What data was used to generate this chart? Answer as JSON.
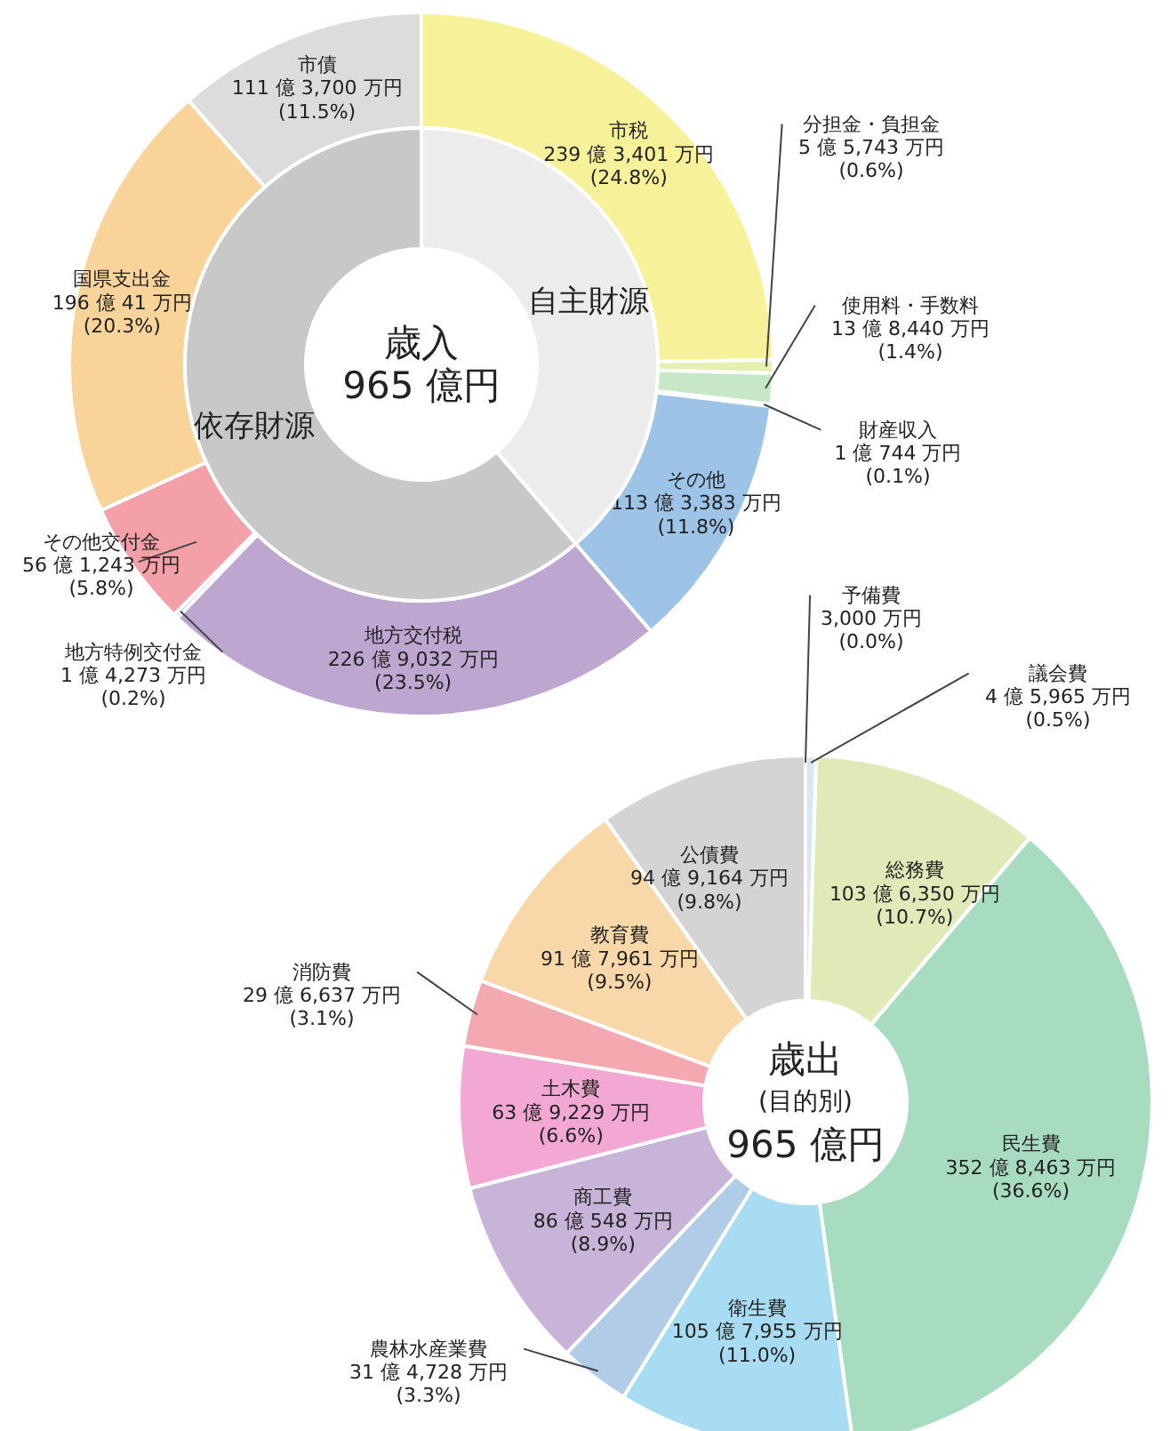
{
  "chart_data": [
    {
      "type": "donut",
      "title": "歳入\n965 億円",
      "legend": false,
      "categories": [
        "市税",
        "分担金・負担金",
        "使用料・手数料",
        "財産収入",
        "その他",
        "地方交付税",
        "地方特例交付金",
        "その他交付金",
        "国県支出金",
        "市債"
      ],
      "values": [
        24.8,
        0.6,
        1.4,
        0.1,
        11.8,
        23.5,
        0.2,
        5.8,
        20.3,
        11.5
      ],
      "colors": [
        "#f7f29a",
        "#e6eeb0",
        "#c6e8c8",
        "#8fd3a8",
        "#9dc3e6",
        "#bda6cf",
        "#c9b0dc",
        "#f4a0a8",
        "#f8d49a",
        "#dcdcdc"
      ],
      "value_labels": [
        "239 億 3,401 万円\n(24.8%)",
        "5 億 5,743 万円\n(0.6%)",
        "13 億 8,440 万円\n(1.4%)",
        "1 億 744 万円\n(0.1%)",
        "113 億 3,383 万円\n(11.8%)",
        "226 億 9,032 万円\n(23.5%)",
        "1 億 4,273 万円\n(0.2%)",
        "56 億 1,243 万円\n(5.8%)",
        "196 億 41 万円\n(20.3%)",
        "111 億 3,700 万円\n(11.5%)"
      ]
    },
    {
      "type": "donut",
      "legend": false,
      "categories": [
        "自主財源",
        "依存財源"
      ],
      "values": [
        38.7,
        61.3
      ],
      "colors": [
        "#ececec",
        "#c8c8c8"
      ]
    },
    {
      "type": "donut",
      "title": "歳出\n(目的別)\n965 億円",
      "legend": false,
      "categories": [
        "予備費",
        "議会費",
        "総務費",
        "民生費",
        "衛生費",
        "農林水産業費",
        "商工費",
        "土木費",
        "消防費",
        "教育費",
        "公債費"
      ],
      "values": [
        0.0,
        0.5,
        10.7,
        36.6,
        11.0,
        3.3,
        8.9,
        6.6,
        3.1,
        9.5,
        9.8
      ],
      "colors": [
        "#f0f0f0",
        "#d8e8f0",
        "#dfeab8",
        "#a8dcc0",
        "#a8dcf2",
        "#b0cce6",
        "#c8b4d8",
        "#f2a8d2",
        "#f4a8b0",
        "#f8d8a8",
        "#d4d4d4"
      ],
      "value_labels": [
        "3,000 万円\n(0.0%)",
        "4 億 5,965 万円\n(0.5%)",
        "103 億 6,350 万円\n(10.7%)",
        "352 億 8,463 万円\n(36.6%)",
        "105 億 7,955 万円\n(11.0%)",
        "31 億 4,728 万円\n(3.3%)",
        "86 億 548 万円\n(8.9%)",
        "63 億 9,229 万円\n(6.6%)",
        "29 億 6,637 万円\n(3.1%)",
        "91 億 7,961 万円\n(9.5%)",
        "94 億 9,164 万円\n(9.8%)"
      ]
    }
  ]
}
